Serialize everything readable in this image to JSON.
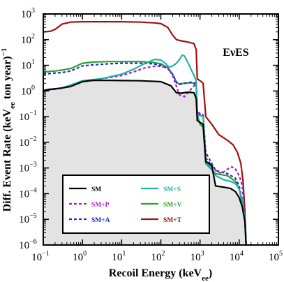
{
  "chart_data": {
    "type": "line",
    "title": "",
    "annotation": "EνES",
    "xlabel": "Recoil Energy (keV_ee)",
    "ylabel": "Diff. Event Rate (keV_ee ton year)^-1",
    "xscale": "log",
    "yscale": "log",
    "xlim": [
      0.1,
      100000
    ],
    "ylim": [
      1e-06,
      1000
    ],
    "x_ticks": [
      {
        "value": 0.1,
        "label": "10",
        "exp": "−1"
      },
      {
        "value": 1,
        "label": "10",
        "exp": "0"
      },
      {
        "value": 10,
        "label": "10",
        "exp": "1"
      },
      {
        "value": 100,
        "label": "10",
        "exp": "2"
      },
      {
        "value": 1000,
        "label": "10",
        "exp": "3"
      },
      {
        "value": 10000,
        "label": "10",
        "exp": "4"
      },
      {
        "value": 100000,
        "label": "10",
        "exp": "5"
      }
    ],
    "y_ticks": [
      {
        "value": 1e-06,
        "label": "10",
        "exp": "−6"
      },
      {
        "value": 1e-05,
        "label": "10",
        "exp": "−5"
      },
      {
        "value": 0.0001,
        "label": "10",
        "exp": "−4"
      },
      {
        "value": 0.001,
        "label": "10",
        "exp": "−3"
      },
      {
        "value": 0.01,
        "label": "10",
        "exp": "−2"
      },
      {
        "value": 0.1,
        "label": "10",
        "exp": "−1"
      },
      {
        "value": 1,
        "label": "10",
        "exp": "0"
      },
      {
        "value": 10,
        "label": "10",
        "exp": "1"
      },
      {
        "value": 100,
        "label": "10",
        "exp": "2"
      },
      {
        "value": 1000,
        "label": "10",
        "exp": "3"
      }
    ],
    "grid": false,
    "legend_position": "bottom-left",
    "shaded_series": "SM",
    "shade_color": "#e3e3e3",
    "series": [
      {
        "name": "SM",
        "color": "#000000",
        "dash": "solid",
        "points": [
          [
            0.1,
            1.0
          ],
          [
            0.14,
            1.15
          ],
          [
            0.2,
            1.2
          ],
          [
            0.3,
            1.3
          ],
          [
            0.5,
            1.5
          ],
          [
            1,
            2.3
          ],
          [
            1.5,
            2.5
          ],
          [
            2,
            2.6
          ],
          [
            5,
            2.6
          ],
          [
            10,
            2.55
          ],
          [
            30,
            2.5
          ],
          [
            100,
            2.3
          ],
          [
            180,
            1.6
          ],
          [
            250,
            0.85
          ],
          [
            330,
            0.82
          ],
          [
            500,
            0.9
          ],
          [
            700,
            0.85
          ],
          [
            800,
            0.5
          ],
          [
            850,
            0.07
          ],
          [
            1000,
            0.06
          ],
          [
            1200,
            0.05
          ],
          [
            1400,
            0.0018
          ],
          [
            1700,
            0.0015
          ],
          [
            2000,
            0.0012
          ],
          [
            2500,
            0.0002
          ],
          [
            4000,
            0.00018
          ],
          [
            6000,
            0.00016
          ],
          [
            8000,
            0.00012
          ],
          [
            10000,
            7e-05
          ],
          [
            12000,
            3e-05
          ],
          [
            14000,
            8e-06
          ],
          [
            15000,
            1e-06
          ]
        ]
      },
      {
        "name": "SM+P",
        "color": "#a020c0",
        "dash": "dashed",
        "points": [
          [
            0.1,
            1.0
          ],
          [
            0.3,
            1.3
          ],
          [
            1,
            2.4
          ],
          [
            2,
            2.7
          ],
          [
            10,
            4.0
          ],
          [
            20,
            5.5
          ],
          [
            40,
            8.0
          ],
          [
            80,
            9.5
          ],
          [
            150,
            8.0
          ],
          [
            200,
            4.0
          ],
          [
            250,
            1.5
          ],
          [
            300,
            0.7
          ],
          [
            400,
            0.6
          ],
          [
            600,
            1.2
          ],
          [
            800,
            2.0
          ],
          [
            850,
            0.15
          ],
          [
            1200,
            0.12
          ],
          [
            1400,
            0.0025
          ],
          [
            2500,
            0.0008
          ],
          [
            3500,
            0.0006
          ],
          [
            5000,
            0.0009
          ],
          [
            6500,
            0.0011
          ],
          [
            8000,
            0.0009
          ],
          [
            10000,
            0.0005
          ],
          [
            12000,
            0.0002
          ],
          [
            14000,
            1e-05
          ],
          [
            15000,
            1e-06
          ]
        ]
      },
      {
        "name": "SM+A",
        "color": "#1a2fbf",
        "dash": "dashed",
        "points": [
          [
            0.1,
            4.5
          ],
          [
            0.2,
            5.0
          ],
          [
            0.3,
            5.2
          ],
          [
            0.5,
            6.0
          ],
          [
            1,
            9.5
          ],
          [
            2,
            10.5
          ],
          [
            5,
            11.5
          ],
          [
            10,
            12.0
          ],
          [
            30,
            12.0
          ],
          [
            60,
            11.5
          ],
          [
            100,
            10.0
          ],
          [
            150,
            7.5
          ],
          [
            200,
            4.5
          ],
          [
            250,
            2.2
          ],
          [
            300,
            1.8
          ],
          [
            400,
            2.0
          ],
          [
            600,
            2.2
          ],
          [
            800,
            2.0
          ],
          [
            850,
            0.13
          ],
          [
            1200,
            0.11
          ],
          [
            1400,
            0.004
          ],
          [
            2500,
            0.0008
          ],
          [
            5000,
            0.0006
          ],
          [
            8000,
            0.0004
          ],
          [
            10000,
            0.0002
          ],
          [
            12000,
            5e-05
          ],
          [
            14000,
            1e-05
          ],
          [
            15000,
            1e-06
          ]
        ]
      },
      {
        "name": "SM+S",
        "color": "#20b0b0",
        "dash": "solid",
        "points": [
          [
            0.1,
            1.1
          ],
          [
            0.3,
            1.3
          ],
          [
            1,
            2.5
          ],
          [
            3,
            3.0
          ],
          [
            10,
            4.5
          ],
          [
            20,
            7.0
          ],
          [
            40,
            12.0
          ],
          [
            70,
            17.0
          ],
          [
            100,
            16.0
          ],
          [
            130,
            12.0
          ],
          [
            160,
            8.5
          ],
          [
            200,
            9.5
          ],
          [
            250,
            12.0
          ],
          [
            300,
            17.0
          ],
          [
            350,
            25.0
          ],
          [
            400,
            23.0
          ],
          [
            500,
            12.0
          ],
          [
            700,
            4.0
          ],
          [
            800,
            2.5
          ],
          [
            850,
            0.12
          ],
          [
            1200,
            0.1
          ],
          [
            1400,
            0.002
          ],
          [
            2500,
            0.0005
          ],
          [
            4000,
            0.00035
          ],
          [
            6000,
            0.0003
          ],
          [
            8000,
            0.00025
          ],
          [
            10000,
            0.00015
          ],
          [
            12000,
            5e-05
          ],
          [
            14000,
            1e-05
          ],
          [
            15000,
            1e-06
          ]
        ]
      },
      {
        "name": "SM+V",
        "color": "#2aa02a",
        "dash": "solid",
        "points": [
          [
            0.1,
            5.5
          ],
          [
            0.2,
            6.0
          ],
          [
            0.3,
            6.5
          ],
          [
            0.5,
            7.5
          ],
          [
            1,
            12.0
          ],
          [
            2,
            13.5
          ],
          [
            5,
            14.0
          ],
          [
            10,
            14.0
          ],
          [
            30,
            14.0
          ],
          [
            60,
            13.0
          ],
          [
            100,
            11.5
          ],
          [
            150,
            8.0
          ],
          [
            200,
            4.5
          ],
          [
            250,
            2.1
          ],
          [
            300,
            1.9
          ],
          [
            400,
            2.0
          ],
          [
            600,
            2.1
          ],
          [
            800,
            1.8
          ],
          [
            850,
            0.12
          ],
          [
            1000,
            0.05
          ],
          [
            1200,
            0.04
          ],
          [
            1400,
            0.0015
          ],
          [
            2500,
            0.0006
          ],
          [
            5000,
            0.0005
          ],
          [
            8000,
            0.0003
          ],
          [
            10000,
            0.00015
          ],
          [
            12000,
            4e-05
          ],
          [
            14000,
            1e-05
          ],
          [
            15000,
            1e-06
          ]
        ]
      },
      {
        "name": "SM+T",
        "color": "#a01010",
        "dash": "solid",
        "points": [
          [
            0.1,
            200
          ],
          [
            0.15,
            210
          ],
          [
            0.2,
            250
          ],
          [
            0.3,
            400
          ],
          [
            0.5,
            480
          ],
          [
            1,
            500
          ],
          [
            3,
            500
          ],
          [
            10,
            500
          ],
          [
            30,
            480
          ],
          [
            70,
            450
          ],
          [
            100,
            420
          ],
          [
            150,
            300
          ],
          [
            200,
            150
          ],
          [
            250,
            100
          ],
          [
            330,
            90
          ],
          [
            500,
            80
          ],
          [
            700,
            70
          ],
          [
            800,
            40
          ],
          [
            850,
            3.0
          ],
          [
            1000,
            2.5
          ],
          [
            1200,
            2.0
          ],
          [
            1400,
            0.1
          ],
          [
            2000,
            0.05
          ],
          [
            3000,
            0.02
          ],
          [
            5000,
            0.012
          ],
          [
            7000,
            0.008
          ],
          [
            9000,
            0.004
          ],
          [
            11000,
            0.0015
          ],
          [
            12500,
            0.0003
          ],
          [
            14000,
            2e-05
          ],
          [
            15000,
            1e-06
          ]
        ]
      }
    ]
  }
}
